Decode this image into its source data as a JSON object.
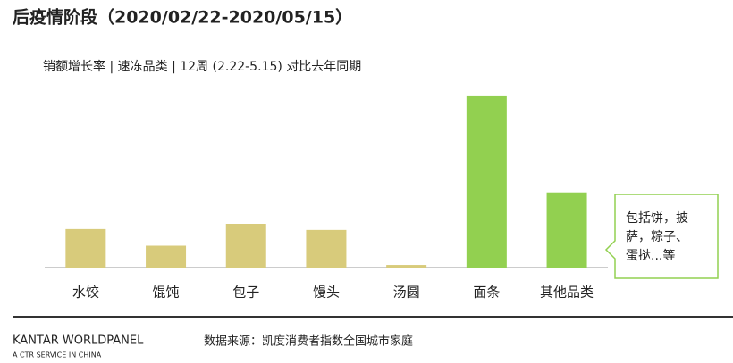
{
  "chart_data": {
    "type": "bar",
    "title": "后疫情阶段（2020/02/22-2020/05/15）",
    "subtitle": "销额增长率 | 速冻品类 | 12周 (2.22-5.15) 对比去年同期",
    "categories": [
      "水饺",
      "馄饨",
      "包子",
      "馒头",
      "汤圆",
      "面条",
      "其他品类"
    ],
    "values": [
      44,
      25,
      50,
      43,
      3,
      196,
      86
    ],
    "colors": [
      "#d8cb7b",
      "#d8cb7b",
      "#d8cb7b",
      "#d8cb7b",
      "#d8cb7b",
      "#92d050",
      "#92d050"
    ],
    "ylim": [
      0,
      200
    ],
    "annotation": [
      "包括饼，披",
      "萨，粽子、",
      "蛋挞...等"
    ]
  },
  "footer": {
    "brand": "KANTAR WORLDPANEL",
    "tagline": "A CTR SERVICE IN CHINA",
    "source": "数据来源：凯度消费者指数全国城市家庭"
  }
}
